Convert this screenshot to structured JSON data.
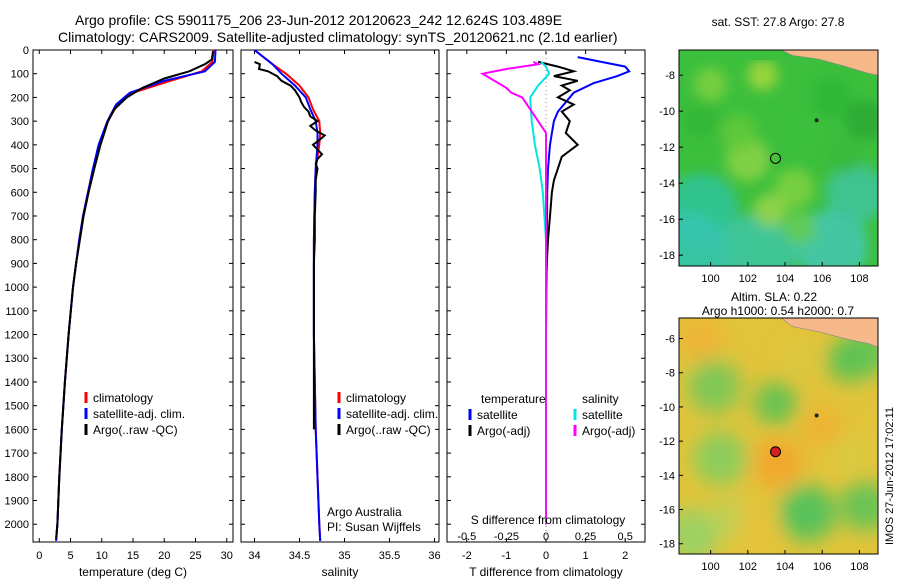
{
  "header": {
    "line1": "Argo profile: CS 5901175_206 23-Jun-2012 20120623_242 12.624S 103.489E",
    "line2": "Climatology: CARS2009. Satellite-adjusted climatology: synTS_20120621.nc (2.1d earlier)"
  },
  "stamp": "IMOS 27-Jun-2012 17:02:11",
  "colors": {
    "climatology": "#ff0000",
    "satellite": "#0000ff",
    "argo": "#000000",
    "salinity_sat": "#00e5e5",
    "salinity_argo": "#ff00ff"
  },
  "chart_data": [
    {
      "type": "line",
      "xlabel": "temperature (deg C)",
      "ylabel": "",
      "xlim": [
        -1,
        31
      ],
      "ylim": [
        0,
        2075
      ],
      "y_inverted": true,
      "xticks": [
        0,
        5,
        10,
        15,
        20,
        25,
        30
      ],
      "yticks": [
        0,
        100,
        200,
        300,
        400,
        500,
        600,
        700,
        800,
        900,
        1000,
        1100,
        1200,
        1300,
        1400,
        1500,
        1600,
        1700,
        1800,
        1900,
        2000
      ],
      "legend": [
        "climatology",
        "satellite-adj. clim.",
        "Argo(..raw -QC)"
      ],
      "legend_position": "bottom-right",
      "series": [
        {
          "name": "climatology",
          "color": "#ff0000",
          "y": [
            0,
            50,
            90,
            130,
            180,
            230,
            300,
            400,
            500,
            600,
            700,
            800,
            900,
            1000,
            1200,
            1400,
            1600,
            1800,
            2000,
            2070
          ],
          "x": [
            27.9,
            27.7,
            26,
            21,
            15,
            12.5,
            11,
            9.6,
            8.6,
            7.8,
            7,
            6.4,
            5.9,
            5.4,
            4.7,
            4.1,
            3.6,
            3.2,
            2.9,
            2.7
          ]
        },
        {
          "name": "satellite-adj. clim.",
          "color": "#0000ff",
          "y": [
            0,
            50,
            90,
            130,
            180,
            230,
            300,
            400,
            500,
            600,
            700,
            800,
            900,
            1000,
            1200,
            1400,
            1600,
            1800,
            2000,
            2070
          ],
          "x": [
            28.2,
            28.1,
            26.5,
            20,
            14.5,
            12.3,
            10.9,
            9.5,
            8.6,
            7.8,
            7,
            6.4,
            5.9,
            5.4,
            4.7,
            4.1,
            3.6,
            3.2,
            2.9,
            2.7
          ]
        },
        {
          "name": "Argo(..raw -QC)",
          "color": "#000000",
          "y": [
            5,
            40,
            60,
            90,
            120,
            160,
            200,
            250,
            300,
            350,
            400,
            500,
            600,
            700,
            800,
            900,
            1000,
            1200,
            1400,
            1600,
            1800,
            2000,
            2060
          ],
          "x": [
            27.8,
            27.6,
            26.5,
            24,
            20,
            16.5,
            14,
            12,
            11,
            10.4,
            9.8,
            8.8,
            7.9,
            7.1,
            6.5,
            5.9,
            5.4,
            4.7,
            4.1,
            3.6,
            3.2,
            2.9,
            2.7
          ]
        }
      ]
    },
    {
      "type": "line",
      "xlabel": "salinity",
      "ylabel": "",
      "xlim": [
        33.85,
        36.05
      ],
      "ylim": [
        0,
        2075
      ],
      "y_inverted": true,
      "xticks": [
        34,
        34.5,
        35,
        35.5,
        36
      ],
      "legend": [
        "climatology",
        "satellite-adj. clim.",
        "Argo(..raw -QC)"
      ],
      "legend_position": "right",
      "annotations": [
        "Argo Australia",
        "PI: Susan Wijffels"
      ],
      "series": [
        {
          "name": "climatology",
          "color": "#ff0000",
          "y": [
            0,
            30,
            60,
            100,
            150,
            200,
            250,
            300,
            350,
            400,
            450,
            500,
            600,
            800,
            1000,
            1200,
            1400,
            1600,
            1800,
            2000,
            2070
          ],
          "x": [
            34.0,
            34.1,
            34.2,
            34.35,
            34.5,
            34.6,
            34.65,
            34.72,
            34.73,
            34.72,
            34.7,
            34.68,
            34.67,
            34.66,
            34.66,
            34.66,
            34.67,
            34.68,
            34.7,
            34.72,
            34.73
          ]
        },
        {
          "name": "satellite-adj. clim.",
          "color": "#0000ff",
          "y": [
            0,
            30,
            60,
            100,
            150,
            200,
            250,
            300,
            350,
            400,
            450,
            500,
            600,
            800,
            1000,
            1200,
            1400,
            1600,
            1800,
            2000,
            2070
          ],
          "x": [
            34.0,
            34.1,
            34.2,
            34.3,
            34.45,
            34.57,
            34.62,
            34.68,
            34.7,
            34.7,
            34.69,
            34.68,
            34.67,
            34.66,
            34.66,
            34.66,
            34.67,
            34.68,
            34.7,
            34.72,
            34.73
          ]
        },
        {
          "name": "Argo(..raw -QC)",
          "color": "#000000",
          "y": [
            50,
            60,
            80,
            90,
            110,
            130,
            150,
            170,
            200,
            220,
            240,
            260,
            280,
            300,
            320,
            340,
            360,
            380,
            400,
            420,
            440,
            460,
            480,
            500,
            550,
            600,
            700,
            800,
            900,
            1000,
            1100,
            1200,
            1300,
            1400,
            1500,
            1600
          ],
          "x": [
            34.0,
            34.06,
            34.05,
            34.15,
            34.25,
            34.3,
            34.4,
            34.45,
            34.5,
            34.52,
            34.55,
            34.6,
            34.62,
            34.7,
            34.62,
            34.68,
            34.78,
            34.72,
            34.65,
            34.7,
            34.75,
            34.7,
            34.68,
            34.7,
            34.68,
            34.68,
            34.67,
            34.67,
            34.66,
            34.66,
            34.66,
            34.66,
            34.66,
            34.66,
            34.66,
            34.66
          ]
        }
      ]
    },
    {
      "type": "line",
      "xlabel": "T difference from climatology",
      "x2label": "S difference from climatology",
      "xlim": [
        -2.5,
        2.5
      ],
      "x2lim": [
        -0.625,
        0.625
      ],
      "ylim": [
        0,
        2075
      ],
      "y_inverted": true,
      "xticks": [
        -2,
        -1,
        0,
        1,
        2
      ],
      "x2ticks": [
        -0.5,
        -0.25,
        0,
        0.25,
        0.5
      ],
      "legend_groups": [
        {
          "title": "temperature",
          "items": [
            "satellite",
            "Argo(-adj)"
          ]
        },
        {
          "title": "salinity",
          "items": [
            "satellite",
            "Argo(-adj)"
          ]
        }
      ],
      "series": [
        {
          "name": "temperature satellite",
          "color": "#0000ff",
          "y": [
            30,
            50,
            70,
            90,
            110,
            140,
            180,
            220,
            260,
            300,
            350,
            400,
            500,
            600,
            800,
            1000,
            1200,
            1500,
            2000
          ],
          "x": [
            0.8,
            1.4,
            2.0,
            2.1,
            1.8,
            1.2,
            0.7,
            0.5,
            0.3,
            0.2,
            0.15,
            0.1,
            0.05,
            0.03,
            0.02,
            0.01,
            0.0,
            0.0,
            0.0
          ]
        },
        {
          "name": "temperature Argo(-adj)",
          "color": "#000000",
          "y": [
            50,
            70,
            90,
            110,
            130,
            150,
            170,
            200,
            230,
            260,
            300,
            350,
            400,
            450,
            500,
            550,
            600,
            700,
            800,
            900,
            1000,
            1200,
            1500,
            2000
          ],
          "x": [
            -0.2,
            0.3,
            0.7,
            0.2,
            0.8,
            0.4,
            0.6,
            0.3,
            0.7,
            0.4,
            0.6,
            0.5,
            0.8,
            0.4,
            0.3,
            0.2,
            0.15,
            0.1,
            0.05,
            0.02,
            0.0,
            0.0,
            0.0,
            0.0
          ]
        },
        {
          "name": "salinity satellite",
          "color": "#00e5e5",
          "y": [
            50,
            70,
            100,
            150,
            200,
            300,
            400,
            500,
            600,
            800,
            1000,
            1500,
            2000
          ],
          "x": [
            -0.03,
            0.0,
            0.02,
            -0.05,
            -0.1,
            -0.09,
            -0.07,
            -0.04,
            -0.02,
            0.0,
            0.0,
            0.0,
            0.0
          ]
        },
        {
          "name": "salinity Argo(-adj)",
          "color": "#ff00ff",
          "y": [
            50,
            60,
            80,
            100,
            120,
            140,
            160,
            180,
            200,
            250,
            300,
            350,
            400,
            500,
            600,
            800,
            1000,
            1500,
            2000
          ],
          "x": [
            -0.08,
            -0.05,
            -0.25,
            -0.4,
            -0.35,
            -0.3,
            -0.25,
            -0.22,
            -0.15,
            -0.1,
            -0.05,
            0.0,
            0.0,
            0.0,
            0.0,
            0.0,
            0.0,
            0.0,
            0.0
          ]
        }
      ]
    },
    {
      "type": "heatmap",
      "title": "sat. SST: 27.8 Argo: 27.8",
      "xticks": [
        100,
        102,
        104,
        106,
        108
      ],
      "yticks": [
        -8,
        -10,
        -12,
        -14,
        -16,
        -18
      ],
      "xlim": [
        98.3,
        109
      ],
      "ylim": [
        -18.6,
        -6.6
      ],
      "marker": {
        "lon": 103.49,
        "lat": -12.62
      },
      "island": {
        "lon": 105.7,
        "lat": -10.5
      }
    },
    {
      "type": "heatmap",
      "title_line1": "Altim. SLA: 0.22",
      "title_line2": "Argo h1000: 0.54 h2000: 0.7",
      "xticks": [
        100,
        102,
        104,
        106,
        108
      ],
      "yticks": [
        -6,
        -8,
        -10,
        -12,
        -14,
        -16,
        -18
      ],
      "xlim": [
        98.3,
        109
      ],
      "ylim": [
        -18.6,
        -4.8
      ],
      "marker": {
        "lon": 103.49,
        "lat": -12.62
      },
      "island": {
        "lon": 105.7,
        "lat": -10.5
      }
    }
  ]
}
